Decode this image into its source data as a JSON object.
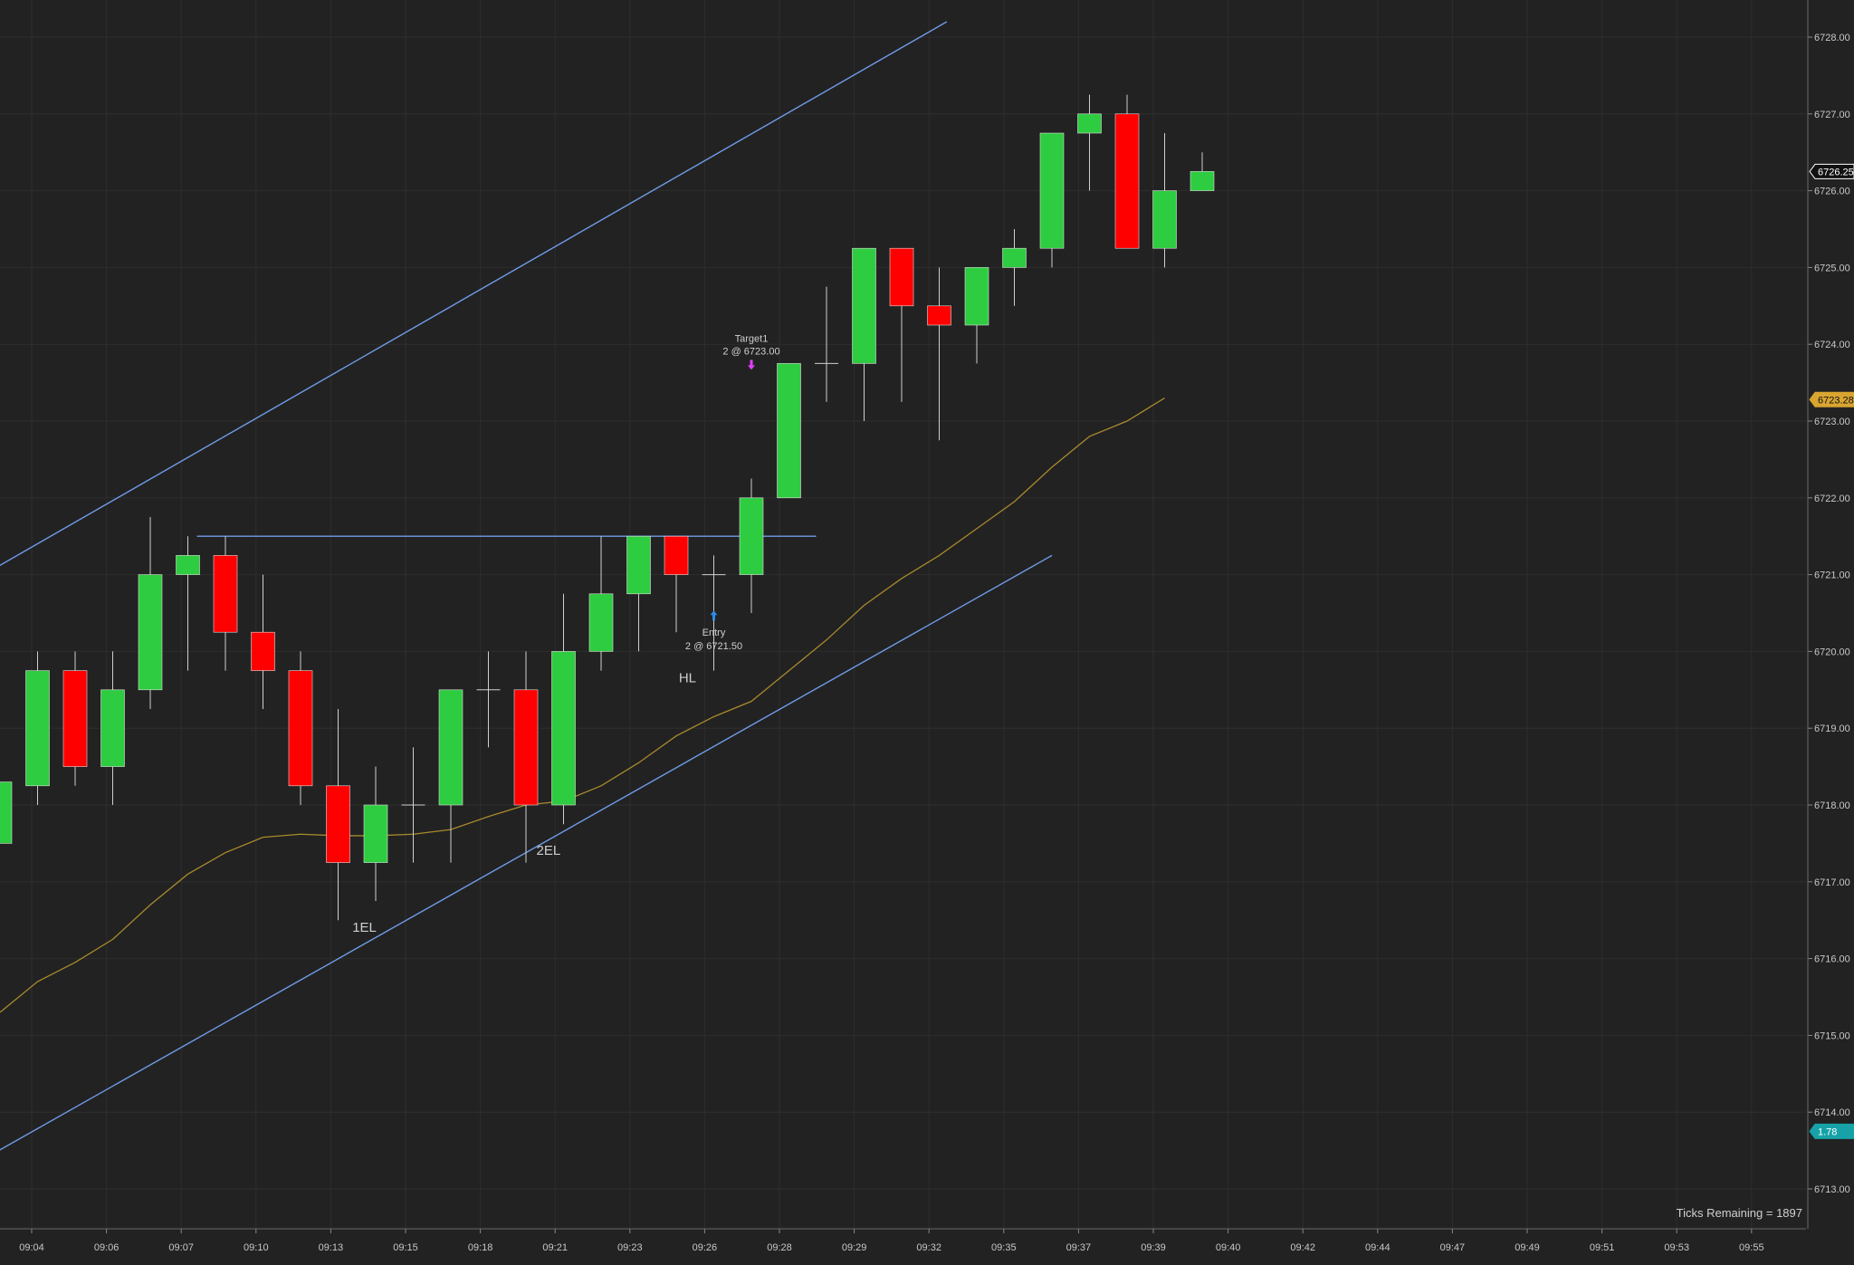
{
  "chart_data": {
    "type": "candlestick",
    "background": "#222222",
    "colors": {
      "up": "#2ecc40",
      "down": "#ff0000",
      "wick": "#cfcfcf",
      "channel": "#6f9be8",
      "ma": "#a88a2c",
      "grid": "#2e2e2e",
      "axis_text": "#c8c8c8"
    },
    "ylim": [
      6712.5,
      6728.5
    ],
    "y_ticks": [
      "6713.00",
      "6714.00",
      "6715.00",
      "6716.00",
      "6717.00",
      "6718.00",
      "6719.00",
      "6720.00",
      "6721.00",
      "6722.00",
      "6723.00",
      "6724.00",
      "6725.00",
      "6726.00",
      "6727.00",
      "6728.00"
    ],
    "x_ticks": [
      "09:04",
      "09:06",
      "09:07",
      "09:10",
      "09:13",
      "09:15",
      "09:18",
      "09:21",
      "09:23",
      "09:26",
      "09:28",
      "09:29",
      "09:32",
      "09:35",
      "09:37",
      "09:39",
      "09:40",
      "09:42",
      "09:44",
      "09:47",
      "09:49",
      "09:51",
      "09:53",
      "09:55"
    ],
    "bars": [
      {
        "o": 6717.5,
        "h": 6718.3,
        "l": 6717.5,
        "c": 6718.3
      },
      {
        "o": 6718.25,
        "h": 6720.0,
        "l": 6718.0,
        "c": 6719.75
      },
      {
        "o": 6719.75,
        "h": 6720.0,
        "l": 6718.25,
        "c": 6718.5
      },
      {
        "o": 6718.5,
        "h": 6720.0,
        "l": 6718.0,
        "c": 6719.5
      },
      {
        "o": 6719.5,
        "h": 6721.75,
        "l": 6719.25,
        "c": 6721.0
      },
      {
        "o": 6721.0,
        "h": 6721.5,
        "l": 6719.75,
        "c": 6721.25
      },
      {
        "o": 6721.25,
        "h": 6721.5,
        "l": 6719.75,
        "c": 6720.25
      },
      {
        "o": 6720.25,
        "h": 6721.0,
        "l": 6719.25,
        "c": 6719.75
      },
      {
        "o": 6719.75,
        "h": 6720.0,
        "l": 6718.0,
        "c": 6718.25
      },
      {
        "o": 6718.25,
        "h": 6719.25,
        "l": 6716.5,
        "c": 6717.25
      },
      {
        "o": 6717.25,
        "h": 6718.5,
        "l": 6716.75,
        "c": 6718.0
      },
      {
        "o": 6718.0,
        "h": 6718.75,
        "l": 6717.25,
        "c": 6718.0
      },
      {
        "o": 6718.0,
        "h": 6719.5,
        "l": 6717.25,
        "c": 6719.5
      },
      {
        "o": 6719.5,
        "h": 6720.0,
        "l": 6718.75,
        "c": 6719.5
      },
      {
        "o": 6719.5,
        "h": 6720.0,
        "l": 6717.25,
        "c": 6718.0
      },
      {
        "o": 6718.0,
        "h": 6720.75,
        "l": 6717.75,
        "c": 6720.0
      },
      {
        "o": 6720.0,
        "h": 6721.5,
        "l": 6719.75,
        "c": 6720.75
      },
      {
        "o": 6720.75,
        "h": 6721.5,
        "l": 6720.0,
        "c": 6721.5
      },
      {
        "o": 6721.5,
        "h": 6721.5,
        "l": 6720.25,
        "c": 6721.0
      },
      {
        "o": 6721.0,
        "h": 6721.25,
        "l": 6719.75,
        "c": 6721.0
      },
      {
        "o": 6721.0,
        "h": 6722.25,
        "l": 6720.5,
        "c": 6722.0
      },
      {
        "o": 6722.0,
        "h": 6723.75,
        "l": 6722.0,
        "c": 6723.75
      },
      {
        "o": 6723.75,
        "h": 6724.75,
        "l": 6723.25,
        "c": 6723.75
      },
      {
        "o": 6723.75,
        "h": 6725.25,
        "l": 6723.0,
        "c": 6725.25
      },
      {
        "o": 6725.25,
        "h": 6725.25,
        "l": 6723.25,
        "c": 6724.5
      },
      {
        "o": 6724.5,
        "h": 6725.0,
        "l": 6722.75,
        "c": 6724.25
      },
      {
        "o": 6724.25,
        "h": 6725.0,
        "l": 6723.75,
        "c": 6725.0
      },
      {
        "o": 6725.0,
        "h": 6725.5,
        "l": 6724.5,
        "c": 6725.25
      },
      {
        "o": 6725.25,
        "h": 6726.75,
        "l": 6725.0,
        "c": 6726.75
      },
      {
        "o": 6726.75,
        "h": 6727.25,
        "l": 6726.0,
        "c": 6727.0
      },
      {
        "o": 6727.0,
        "h": 6727.25,
        "l": 6725.25,
        "c": 6725.25
      },
      {
        "o": 6725.25,
        "h": 6726.75,
        "l": 6725.0,
        "c": 6726.0
      },
      {
        "o": 6726.0,
        "h": 6726.5,
        "l": 6726.0,
        "c": 6726.25
      }
    ],
    "moving_average": [
      6715.3,
      6715.7,
      6715.95,
      6716.25,
      6716.7,
      6717.1,
      6717.38,
      6717.58,
      6717.62,
      6717.6,
      6717.6,
      6717.62,
      6717.68,
      6717.85,
      6718.0,
      6718.05,
      6718.25,
      6718.55,
      6718.9,
      6719.15,
      6719.35,
      6719.75,
      6720.15,
      6720.6,
      6720.95,
      6721.25,
      6721.6,
      6721.95,
      6722.4,
      6722.8,
      6723.0,
      6723.3
    ],
    "channel_lines": [
      {
        "x1": -1.5,
        "y1": 6720.7,
        "x2": 25.2,
        "y2": 6728.2
      },
      {
        "x1": -1.3,
        "y1": 6713.15,
        "x2": 28.0,
        "y2": 6721.25
      }
    ],
    "horizontal_line": {
      "y": 6721.5,
      "x1": 5,
      "x2": 21
    },
    "annotations": [
      {
        "text": "1EL",
        "bar": 9.7,
        "y": 6716.35
      },
      {
        "text": "2EL",
        "bar": 14.6,
        "y": 6717.35
      },
      {
        "text": "HL",
        "bar": 18.3,
        "y": 6719.6
      }
    ],
    "markers": [
      {
        "label": "Entry",
        "detail": "2 @ 6721.50",
        "bar": 19,
        "y": 6720.45,
        "dir": "up",
        "color": "#2f8be8"
      },
      {
        "label": "Target1",
        "detail": "2 @ 6723.00",
        "bar": 20,
        "y": 6723.75,
        "dir": "down",
        "color": "#e040fb"
      }
    ],
    "price_tags": [
      {
        "value": "6726.25",
        "y": 6726.25,
        "bg": "#111111",
        "fg": "#ffffff",
        "border": "#ffffff"
      },
      {
        "value": "6723.28",
        "y": 6723.28,
        "bg": "#d9a531",
        "fg": "#111111",
        "border": "#d9a531"
      },
      {
        "value": "1.78",
        "y": 6713.75,
        "bg": "#17a2a8",
        "fg": "#ffffff",
        "border": "#17a2a8"
      }
    ]
  },
  "status": {
    "ticks_remaining": "Ticks Remaining = 1897"
  }
}
